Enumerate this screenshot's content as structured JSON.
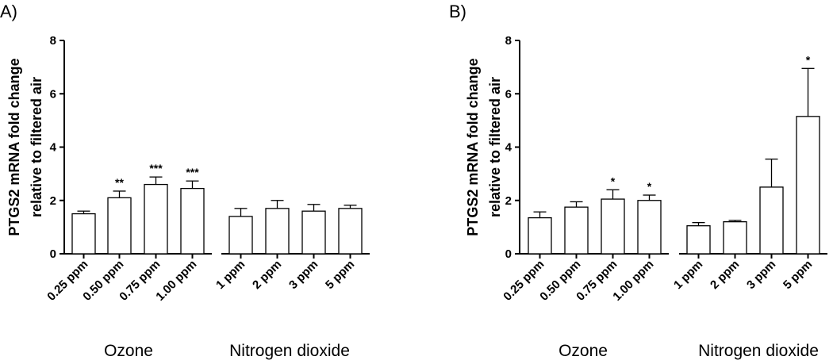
{
  "chart_data": [
    {
      "type": "bar",
      "panel_label": "A)",
      "ylabel_lines": [
        "PTGS2 mRNA fold change",
        "relative to filtered air"
      ],
      "ylim": [
        0,
        8
      ],
      "yticks": [
        "0",
        "2",
        "4",
        "6",
        "8"
      ],
      "grid": false,
      "categories": [
        "0.25 ppm",
        "0.50 ppm",
        "0.75 ppm",
        "1.00 ppm",
        "1 ppm",
        "2 ppm",
        "3 ppm",
        "5 ppm"
      ],
      "groups": [
        {
          "name": "Ozone",
          "categories": [
            0,
            1,
            2,
            3
          ]
        },
        {
          "name": "Nitrogen dioxide",
          "categories": [
            4,
            5,
            6,
            7
          ]
        }
      ],
      "values": [
        1.5,
        2.1,
        2.6,
        2.45,
        1.4,
        1.7,
        1.6,
        1.7
      ],
      "errors": [
        0.1,
        0.25,
        0.28,
        0.28,
        0.3,
        0.3,
        0.25,
        0.12
      ],
      "significance": [
        "",
        "**",
        "***",
        "***",
        "",
        "",
        "",
        ""
      ]
    },
    {
      "type": "bar",
      "panel_label": "B)",
      "ylabel_lines": [
        "PTGS2 mRNA fold change",
        "relative to filtered air"
      ],
      "ylim": [
        0,
        8
      ],
      "yticks": [
        "0",
        "2",
        "4",
        "6",
        "8"
      ],
      "grid": false,
      "categories": [
        "0.25 ppm",
        "0.50 ppm",
        "0.75 ppm",
        "1.00 ppm",
        "1 ppm",
        "2 ppm",
        "3 ppm",
        "5 ppm"
      ],
      "groups": [
        {
          "name": "Ozone",
          "categories": [
            0,
            1,
            2,
            3
          ]
        },
        {
          "name": "Nitrogen dioxide",
          "categories": [
            4,
            5,
            6,
            7
          ]
        }
      ],
      "values": [
        1.35,
        1.75,
        2.05,
        2.0,
        1.05,
        1.2,
        2.5,
        5.15
      ],
      "errors": [
        0.22,
        0.2,
        0.35,
        0.2,
        0.12,
        0.05,
        1.05,
        1.8
      ],
      "significance": [
        "",
        "",
        "*",
        "*",
        "",
        "",
        "",
        "*"
      ]
    }
  ]
}
